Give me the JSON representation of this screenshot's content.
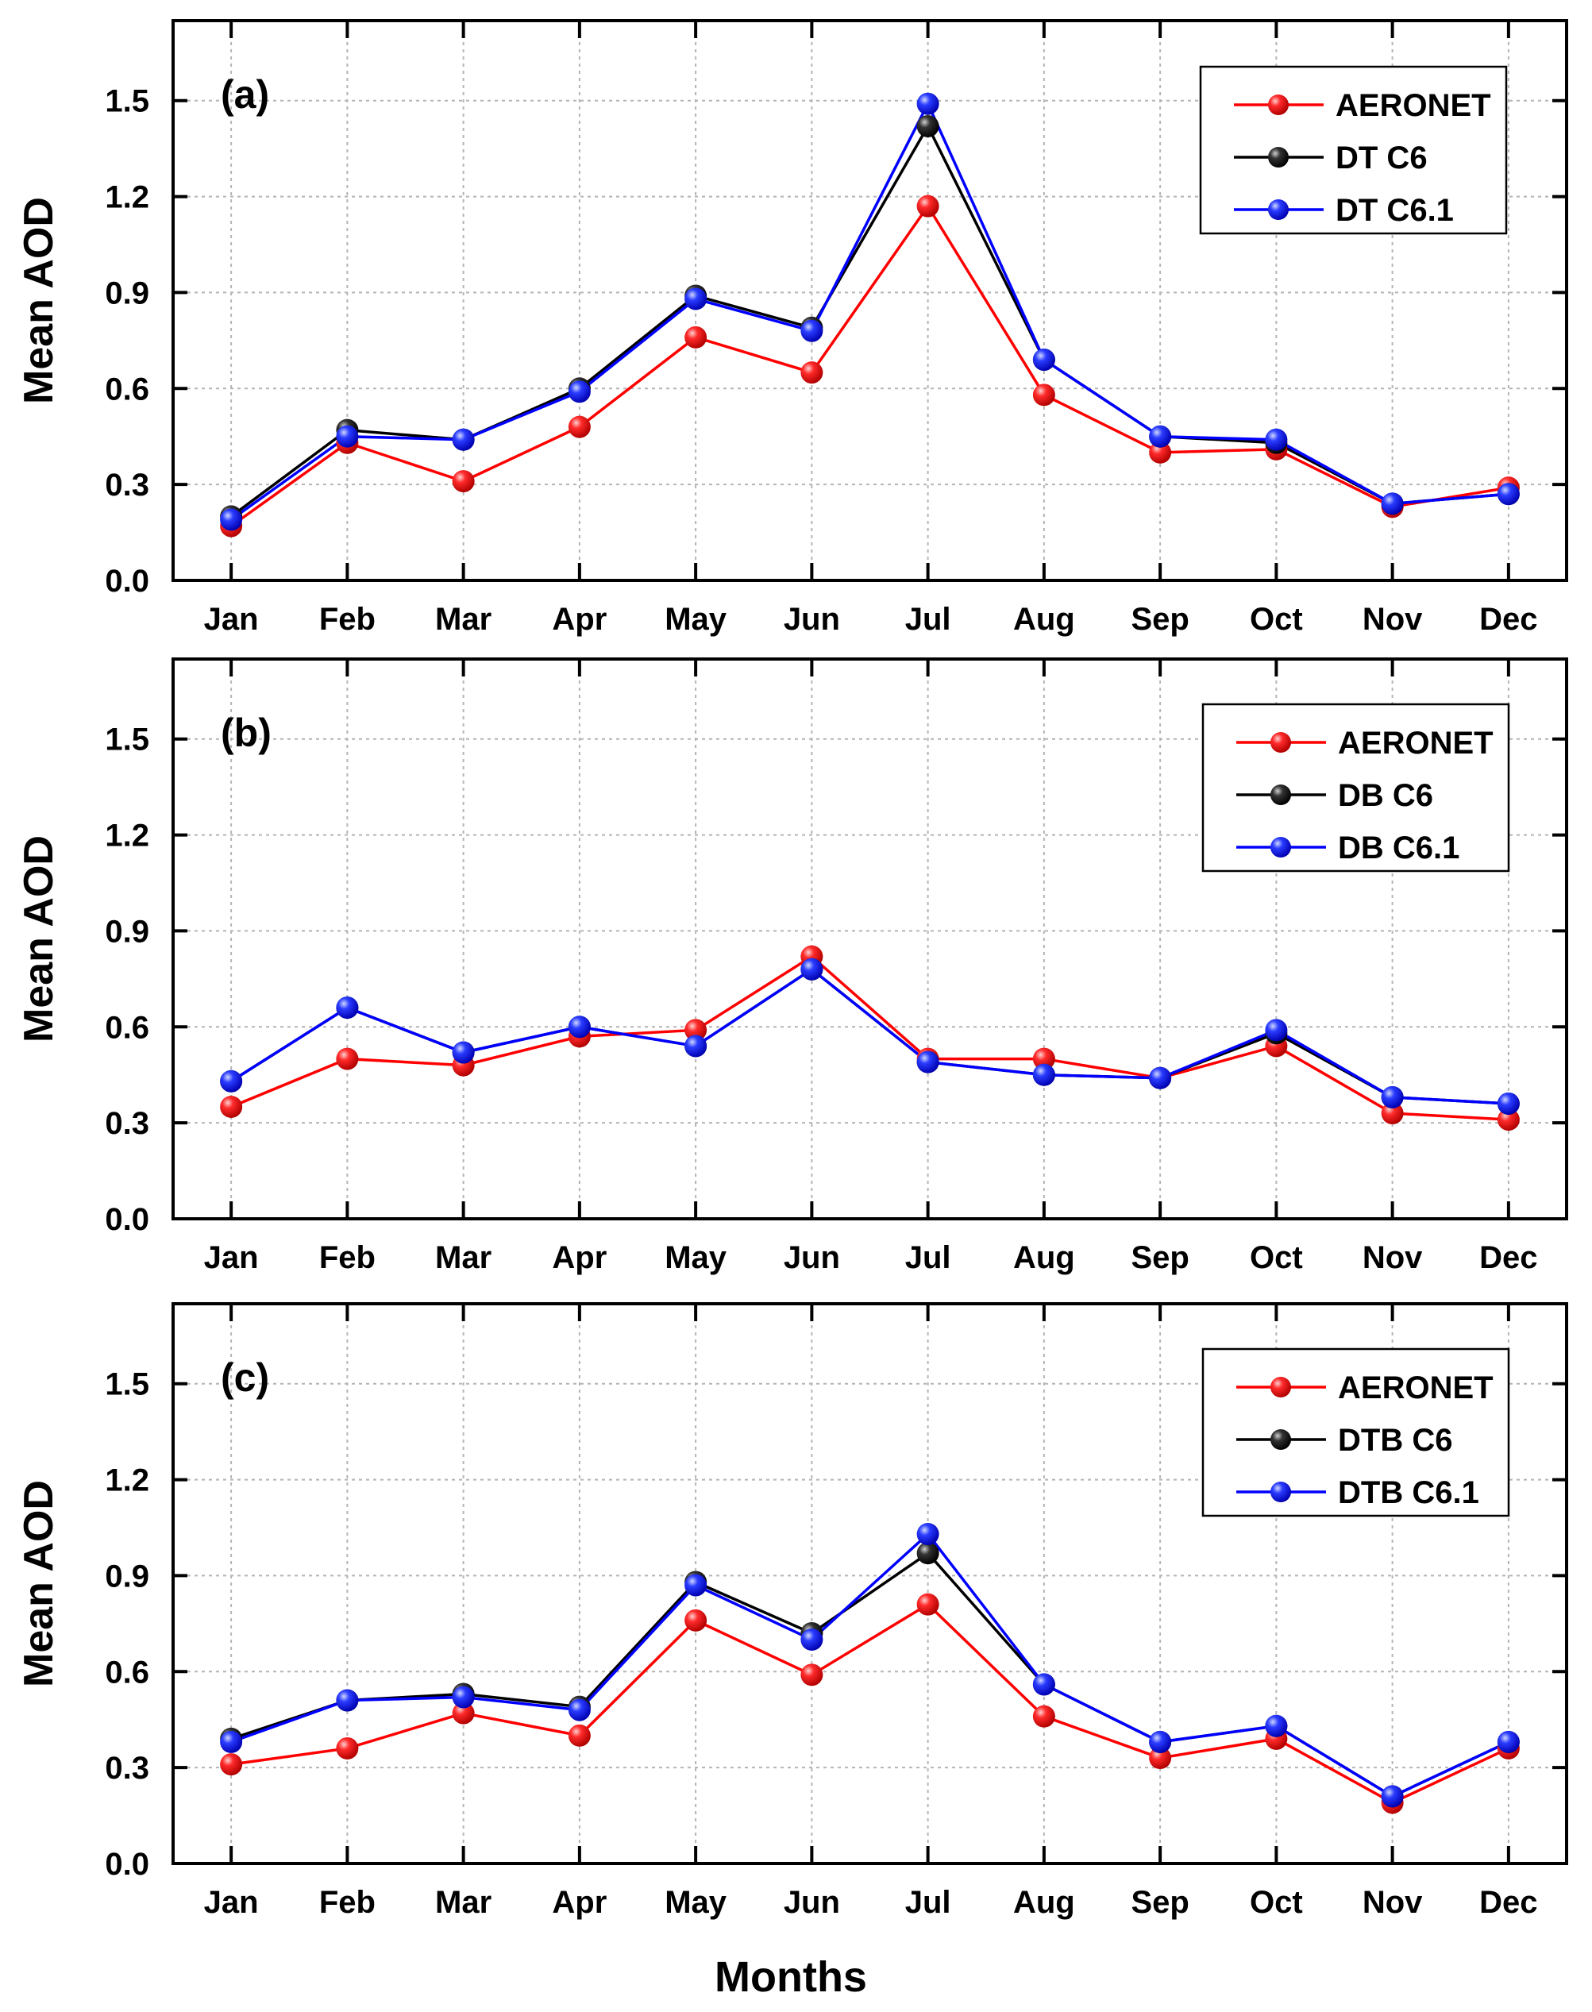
{
  "colors": {
    "aeronet": "#ff0000",
    "c6": "#000000",
    "c61": "#0000ff",
    "grid": "#b4b4b4"
  },
  "chart_data": [
    {
      "type": "line",
      "panel_label": "(a)",
      "categories": [
        "Jan",
        "Feb",
        "Mar",
        "Apr",
        "May",
        "Jun",
        "Jul",
        "Aug",
        "Sep",
        "Oct",
        "Nov",
        "Dec"
      ],
      "ylabel": "Mean AOD",
      "xlabel": "",
      "ylim": [
        0.0,
        1.75
      ],
      "yticks": [
        "0.0",
        "0.3",
        "0.6",
        "0.9",
        "1.2",
        "1.5"
      ],
      "grid": true,
      "legend_position": "top-right",
      "series": [
        {
          "name": "AERONET",
          "color": "#ff0000",
          "values": [
            0.17,
            0.43,
            0.31,
            0.48,
            0.76,
            0.65,
            1.17,
            0.58,
            0.4,
            0.41,
            0.23,
            0.29
          ]
        },
        {
          "name": "DT C6",
          "color": "#000000",
          "values": [
            0.2,
            0.47,
            0.44,
            0.6,
            0.89,
            0.79,
            1.42,
            0.69,
            0.45,
            0.43,
            0.24,
            0.27
          ]
        },
        {
          "name": "DT C6.1",
          "color": "#0000ff",
          "values": [
            0.19,
            0.45,
            0.44,
            0.59,
            0.88,
            0.78,
            1.49,
            0.69,
            0.45,
            0.44,
            0.24,
            0.27
          ]
        }
      ]
    },
    {
      "type": "line",
      "panel_label": "(b)",
      "categories": [
        "Jan",
        "Feb",
        "Mar",
        "Apr",
        "May",
        "Jun",
        "Jul",
        "Aug",
        "Sep",
        "Oct",
        "Nov",
        "Dec"
      ],
      "ylabel": "Mean AOD",
      "xlabel": "",
      "ylim": [
        0.0,
        1.75
      ],
      "yticks": [
        "0.0",
        "0.3",
        "0.6",
        "0.9",
        "1.2",
        "1.5"
      ],
      "grid": true,
      "legend_position": "top-right",
      "series": [
        {
          "name": "AERONET",
          "color": "#ff0000",
          "values": [
            0.35,
            0.5,
            0.48,
            0.57,
            0.59,
            0.82,
            0.5,
            0.5,
            0.44,
            0.54,
            0.33,
            0.31
          ]
        },
        {
          "name": "DB C6",
          "color": "#000000",
          "values": [
            0.43,
            0.66,
            0.52,
            0.6,
            0.54,
            0.78,
            0.49,
            0.45,
            0.44,
            0.58,
            0.38,
            0.36
          ]
        },
        {
          "name": "DB C6.1",
          "color": "#0000ff",
          "values": [
            0.43,
            0.66,
            0.52,
            0.6,
            0.54,
            0.78,
            0.49,
            0.45,
            0.44,
            0.59,
            0.38,
            0.36
          ]
        }
      ]
    },
    {
      "type": "line",
      "panel_label": "(c)",
      "categories": [
        "Jan",
        "Feb",
        "Mar",
        "Apr",
        "May",
        "Jun",
        "Jul",
        "Aug",
        "Sep",
        "Oct",
        "Nov",
        "Dec"
      ],
      "ylabel": "Mean AOD",
      "xlabel": "Months",
      "ylim": [
        0.0,
        1.75
      ],
      "yticks": [
        "0.0",
        "0.3",
        "0.6",
        "0.9",
        "1.2",
        "1.5"
      ],
      "grid": true,
      "legend_position": "top-right",
      "series": [
        {
          "name": "AERONET",
          "color": "#ff0000",
          "values": [
            0.31,
            0.36,
            0.47,
            0.4,
            0.76,
            0.59,
            0.81,
            0.46,
            0.33,
            0.39,
            0.19,
            0.36
          ]
        },
        {
          "name": "DTB C6",
          "color": "#000000",
          "values": [
            0.39,
            0.51,
            0.53,
            0.49,
            0.88,
            0.72,
            0.97,
            0.56,
            0.38,
            0.43,
            0.21,
            0.38
          ]
        },
        {
          "name": "DTB C6.1",
          "color": "#0000ff",
          "values": [
            0.38,
            0.51,
            0.52,
            0.48,
            0.87,
            0.7,
            1.03,
            0.56,
            0.38,
            0.43,
            0.21,
            0.38
          ]
        }
      ]
    }
  ]
}
